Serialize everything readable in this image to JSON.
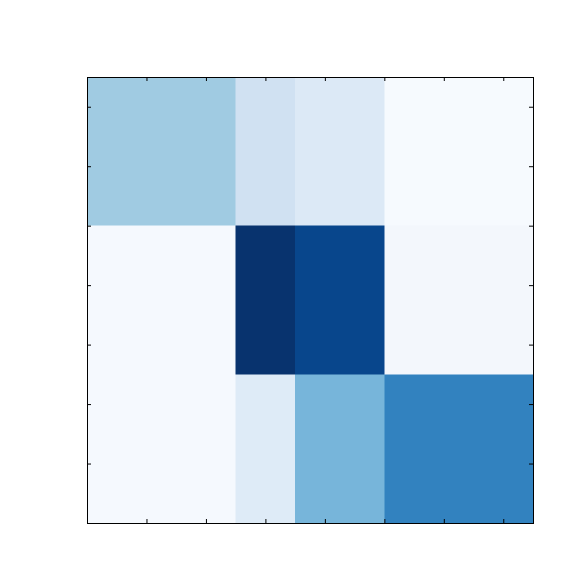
{
  "chart_data": {
    "type": "heatmap",
    "x_edges": [
      0,
      2.5,
      3.5,
      5,
      7.5
    ],
    "y_edges": [
      0,
      2.5,
      5,
      7.5
    ],
    "cells": [
      {
        "row": 0,
        "col": 0,
        "color": "#a0cbe2"
      },
      {
        "row": 0,
        "col": 1,
        "color": "#d0e1f2"
      },
      {
        "row": 0,
        "col": 2,
        "color": "#dce9f6"
      },
      {
        "row": 0,
        "col": 3,
        "color": "#f6fafe"
      },
      {
        "row": 1,
        "col": 0,
        "color": "#f5f9fe"
      },
      {
        "row": 1,
        "col": 1,
        "color": "#08336e"
      },
      {
        "row": 1,
        "col": 2,
        "color": "#08468c"
      },
      {
        "row": 1,
        "col": 3,
        "color": "#f3f7fc"
      },
      {
        "row": 2,
        "col": 0,
        "color": "#f5f9fe"
      },
      {
        "row": 2,
        "col": 1,
        "color": "#deebf7"
      },
      {
        "row": 2,
        "col": 2,
        "color": "#77b5da"
      },
      {
        "row": 2,
        "col": 3,
        "color": "#3282bf"
      }
    ],
    "x_ticks": [
      0,
      1,
      2,
      3,
      4,
      5,
      6,
      7
    ],
    "y_ticks": [
      0.5,
      1.5,
      2.5,
      3.5,
      4.5,
      5.5,
      6.5
    ],
    "xlim": [
      0,
      7.5
    ],
    "ylim": [
      0,
      7.5
    ],
    "tick_labels_visible": false,
    "grid": false,
    "colormap": "Blues"
  }
}
